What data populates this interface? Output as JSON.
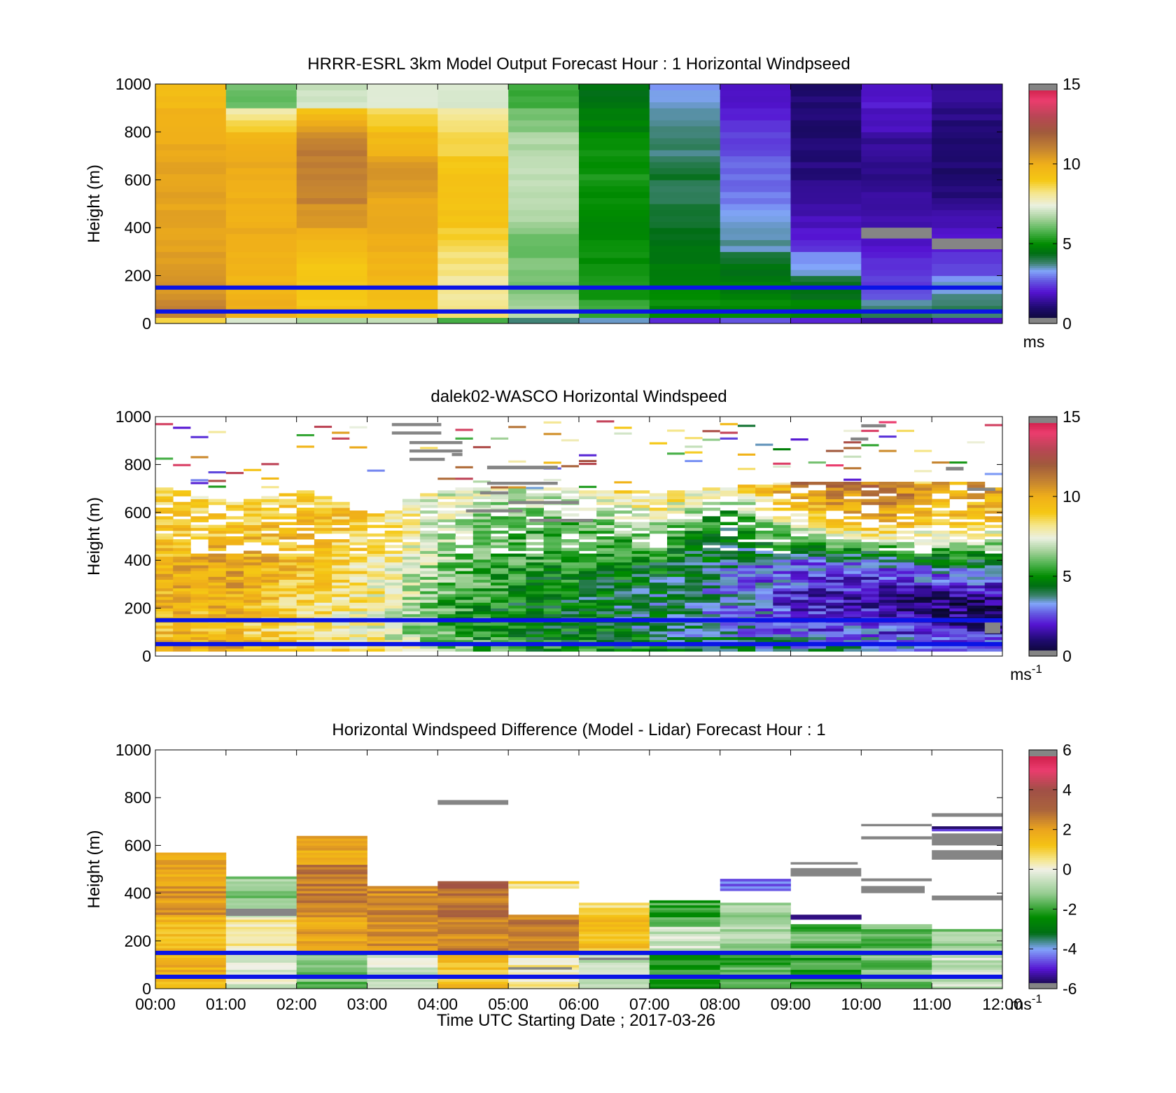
{
  "figure": {
    "x_axis_title": "Time UTC  Starting Date ; 2017-03-26",
    "x_tick_labels": [
      "00:00",
      "01:00",
      "02:00",
      "03:00",
      "04:00",
      "05:00",
      "06:00",
      "07:00",
      "08:00",
      "09:00",
      "10:00",
      "11:00",
      "12:00"
    ],
    "reference_line_color": "#0a14e6",
    "nodata_color": "#858585"
  },
  "chart_data": [
    {
      "type": "heatmap",
      "title": "HRRR-ESRL 3km Model Output   Forecast Hour : 1 Horizontal Windpseed",
      "xlabel": "",
      "ylabel": "Height (m)",
      "ylim": [
        0,
        1000
      ],
      "y_ticks": [
        0,
        200,
        400,
        600,
        800,
        1000
      ],
      "x_range_hours": [
        0,
        12
      ],
      "reference_lines_m": [
        50,
        150
      ],
      "colorbar": {
        "min": 0,
        "max": 15,
        "ticks": [
          0,
          5,
          10,
          15
        ],
        "unit": "ms",
        "unit_exp": ""
      },
      "model_columns": [
        {
          "t0": 0,
          "t1": 1,
          "values": [
            11.0,
            10.6,
            10.4,
            10.3,
            10.2,
            10.3,
            10.2,
            10.1,
            10.0,
            9.5
          ]
        },
        {
          "t0": 1,
          "t1": 2,
          "values": [
            10.0,
            9.8,
            9.8,
            10.0,
            10.0,
            10.0,
            10.1,
            10.0,
            9.0,
            6.0
          ]
        },
        {
          "t0": 2,
          "t1": 3,
          "values": [
            9.2,
            9.0,
            9.0,
            9.6,
            10.4,
            11.0,
            11.0,
            11.2,
            10.4,
            7.0
          ]
        },
        {
          "t0": 3,
          "t1": 4,
          "values": [
            9.2,
            9.4,
            9.8,
            10.0,
            10.2,
            10.2,
            10.6,
            9.8,
            9.2,
            7.4
          ]
        },
        {
          "t0": 4,
          "t1": 5,
          "values": [
            8.4,
            8.0,
            8.2,
            8.6,
            9.2,
            9.2,
            9.2,
            8.8,
            8.4,
            7.2
          ]
        },
        {
          "t0": 5,
          "t1": 6,
          "values": [
            6.7,
            6.3,
            6.2,
            6.0,
            6.6,
            6.8,
            6.9,
            6.8,
            6.4,
            5.5
          ]
        },
        {
          "t0": 6,
          "t1": 7,
          "values": [
            5.6,
            5.2,
            5.1,
            5.0,
            5.0,
            5.1,
            5.2,
            5.1,
            4.8,
            4.5
          ]
        },
        {
          "t0": 7,
          "t1": 8,
          "values": [
            5.0,
            4.9,
            4.6,
            4.4,
            4.2,
            4.0,
            4.2,
            3.8,
            3.6,
            3.3
          ]
        },
        {
          "t0": 8,
          "t1": 9,
          "values": [
            5.0,
            4.8,
            4.5,
            3.6,
            3.3,
            3.0,
            2.8,
            2.6,
            2.3,
            2.0
          ]
        },
        {
          "t0": 9,
          "t1": 10,
          "values": [
            5.0,
            4.5,
            3.6,
            2.2,
            1.8,
            1.5,
            1.2,
            1.0,
            1.0,
            1.0
          ]
        },
        {
          "t0": 10,
          "t1": 11,
          "values": [
            4.2,
            2.6,
            2.2,
            2.0,
            1.6,
            1.4,
            1.2,
            1.3,
            1.8,
            2.0
          ]
        },
        {
          "t0": 11,
          "t1": 12,
          "values": [
            4.0,
            3.6,
            2.6,
            2.0,
            1.6,
            1.2,
            1.0,
            0.9,
            1.1,
            1.5
          ]
        }
      ],
      "nodata_bars": [
        {
          "t0": 10,
          "t1": 11,
          "h0": 355,
          "h1": 400
        },
        {
          "t0": 11,
          "t1": 12,
          "h0": 310,
          "h1": 355
        }
      ]
    },
    {
      "type": "heatmap",
      "title": "dalek02-WASCO  Horizontal Windspeed",
      "xlabel": "",
      "ylabel": "Height (m)",
      "ylim": [
        0,
        1000
      ],
      "y_ticks": [
        0,
        200,
        400,
        600,
        800,
        1000
      ],
      "x_range_hours": [
        0,
        12
      ],
      "reference_lines_m": [
        50,
        150
      ],
      "colorbar": {
        "min": 0,
        "max": 15,
        "ticks": [
          0,
          5,
          10,
          15
        ],
        "unit": "ms",
        "unit_exp": "-1"
      },
      "profile_step_hours": 0.25,
      "mean_profile_knots": [
        [
          0,
          10.0,
          9.5,
          9.6,
          9.8,
          9.0,
          8.5
        ],
        [
          1,
          10.0,
          9.2,
          9.8,
          10.2,
          9.0,
          8.2
        ],
        [
          2,
          9.2,
          8.2,
          8.6,
          9.5,
          9.5,
          8.8
        ],
        [
          3,
          8.2,
          7.6,
          7.8,
          8.2,
          8.8,
          9.0
        ],
        [
          4,
          6.4,
          5.6,
          5.8,
          6.4,
          7.0,
          7.5
        ],
        [
          5,
          5.2,
          4.6,
          4.8,
          5.4,
          5.8,
          7.0
        ],
        [
          6,
          5.0,
          4.6,
          4.4,
          5.0,
          6.0,
          8.5
        ],
        [
          7,
          4.8,
          4.0,
          3.8,
          4.6,
          7.0,
          9.0
        ],
        [
          8,
          4.2,
          3.4,
          3.2,
          3.6,
          4.6,
          8.0
        ],
        [
          9,
          3.6,
          2.6,
          2.0,
          2.8,
          8.0,
          11.0
        ],
        [
          10,
          4.0,
          2.6,
          1.6,
          2.6,
          10.0,
          11.5
        ],
        [
          11,
          3.2,
          1.8,
          0.8,
          4.0,
          9.0,
          10.5
        ],
        [
          12,
          2.8,
          1.6,
          0.9,
          4.0,
          9.0,
          10.0
        ]
      ],
      "profile_knot_heights_m": [
        25,
        100,
        225,
        375,
        550,
        700
      ],
      "data_top_by_hour_m": [
        [
          0,
          700
        ],
        [
          1,
          640
        ],
        [
          2,
          690
        ],
        [
          3,
          590
        ],
        [
          4,
          700
        ],
        [
          5,
          700
        ],
        [
          6,
          690
        ],
        [
          7,
          680
        ],
        [
          8,
          700
        ],
        [
          9,
          720
        ],
        [
          10,
          720
        ],
        [
          11,
          720
        ],
        [
          12,
          720
        ]
      ],
      "nodata_bars": [
        {
          "t0": 3.35,
          "t1": 4.05,
          "h0": 960,
          "h1": 973
        },
        {
          "t0": 3.35,
          "t1": 4.05,
          "h0": 925,
          "h1": 938
        },
        {
          "t0": 3.6,
          "t1": 4.35,
          "h0": 885,
          "h1": 898
        },
        {
          "t0": 3.6,
          "t1": 4.35,
          "h0": 850,
          "h1": 863
        },
        {
          "t0": 3.6,
          "t1": 4.1,
          "h0": 815,
          "h1": 828
        },
        {
          "t0": 4.2,
          "t1": 4.35,
          "h0": 835,
          "h1": 848
        },
        {
          "t0": 4.7,
          "t1": 5.7,
          "h0": 780,
          "h1": 795
        },
        {
          "t0": 4.7,
          "t1": 5.7,
          "h0": 715,
          "h1": 728
        },
        {
          "t0": 4.6,
          "t1": 5.0,
          "h0": 675,
          "h1": 688
        },
        {
          "t0": 5.0,
          "t1": 6.0,
          "h0": 635,
          "h1": 648
        },
        {
          "t0": 4.4,
          "t1": 5.2,
          "h0": 600,
          "h1": 613
        },
        {
          "t0": 5.3,
          "t1": 6.2,
          "h0": 560,
          "h1": 573
        },
        {
          "t0": 10.0,
          "t1": 10.35,
          "h0": 955,
          "h1": 968
        },
        {
          "t0": 9.85,
          "t1": 10.1,
          "h0": 900,
          "h1": 913
        },
        {
          "t0": 11.2,
          "t1": 11.45,
          "h0": 775,
          "h1": 790
        },
        {
          "t0": 11.5,
          "t1": 11.9,
          "h0": 690,
          "h1": 703
        },
        {
          "t0": 11.75,
          "t1": 11.97,
          "h0": 95,
          "h1": 140
        }
      ]
    },
    {
      "type": "heatmap",
      "title": "Horizontal Windspeed Difference (Model - Lidar) Forecast Hour : 1",
      "xlabel": "Time UTC  Starting Date ; 2017-03-26",
      "ylabel": "Height (m)",
      "ylim": [
        0,
        1000
      ],
      "y_ticks": [
        0,
        200,
        400,
        600,
        800,
        1000
      ],
      "x_range_hours": [
        0,
        12
      ],
      "reference_lines_m": [
        50,
        150
      ],
      "colorbar": {
        "min": -6,
        "max": 6,
        "ticks": [
          -6,
          -4,
          -2,
          0,
          2,
          4,
          6
        ],
        "unit": "ms",
        "unit_exp": "-1"
      },
      "difference_columns": [
        {
          "t0": 0,
          "t1": 1,
          "top": 570,
          "segments": [
            [
              0,
              150,
              1.6
            ],
            [
              150,
              300,
              1.5
            ],
            [
              300,
              430,
              2.2
            ],
            [
              430,
              570,
              1.8
            ]
          ]
        },
        {
          "t0": 1,
          "t1": 2,
          "top": 465,
          "segments": [
            [
              0,
              150,
              -0.3
            ],
            [
              150,
              300,
              0.3
            ],
            [
              300,
              465,
              -1.2
            ]
          ]
        },
        {
          "t0": 2,
          "t1": 3,
          "top": 640,
          "segments": [
            [
              0,
              150,
              -1.5
            ],
            [
              150,
              300,
              2.0
            ],
            [
              300,
              520,
              2.7
            ],
            [
              520,
              640,
              1.8
            ]
          ]
        },
        {
          "t0": 3,
          "t1": 4,
          "top": 425,
          "segments": [
            [
              0,
              150,
              -0.4
            ],
            [
              150,
              300,
              2.2
            ],
            [
              300,
              425,
              2.4
            ]
          ]
        },
        {
          "t0": 4,
          "t1": 5,
          "top": 445,
          "segments": [
            [
              0,
              150,
              1.2
            ],
            [
              150,
              300,
              2.5
            ],
            [
              300,
              420,
              2.8
            ],
            [
              420,
              445,
              3.5
            ]
          ]
        },
        {
          "t0": 5,
          "t1": 6,
          "top": 450,
          "segments": [
            [
              0,
              150,
              0.3
            ],
            [
              150,
              310,
              2.5
            ],
            [
              420,
              450,
              0.8
            ]
          ]
        },
        {
          "t0": 6,
          "t1": 7,
          "top": 360,
          "segments": [
            [
              0,
              150,
              -0.8
            ],
            [
              150,
              340,
              1.3
            ],
            [
              340,
              360,
              0.5
            ]
          ]
        },
        {
          "t0": 7,
          "t1": 8,
          "top": 365,
          "segments": [
            [
              0,
              150,
              -2.2
            ],
            [
              150,
              260,
              -0.5
            ],
            [
              260,
              365,
              -2.0
            ]
          ]
        },
        {
          "t0": 8,
          "t1": 9,
          "top": 455,
          "segments": [
            [
              0,
              150,
              -1.8
            ],
            [
              150,
              360,
              -0.9
            ],
            [
              410,
              455,
              -4.5
            ]
          ]
        },
        {
          "t0": 9,
          "t1": 10,
          "top": 310,
          "segments": [
            [
              0,
              150,
              -2.0
            ],
            [
              150,
              270,
              -1.7
            ],
            [
              290,
              310,
              -5.0
            ]
          ]
        },
        {
          "t0": 10,
          "t1": 11,
          "top": 270,
          "segments": [
            [
              0,
              150,
              -1.5
            ],
            [
              150,
              270,
              -1.6
            ]
          ]
        },
        {
          "t0": 11,
          "t1": 12,
          "top": 255,
          "segments": [
            [
              0,
              150,
              -0.5
            ],
            [
              150,
              250,
              -1.2
            ],
            [
              660,
              680,
              -5.2
            ]
          ]
        }
      ],
      "nodata_bars": [
        {
          "t0": 4.0,
          "t1": 5.0,
          "h0": 770,
          "h1": 790
        },
        {
          "t0": 9.0,
          "t1": 10.0,
          "h0": 470,
          "h1": 505
        },
        {
          "t0": 9.0,
          "t1": 9.95,
          "h0": 520,
          "h1": 530
        },
        {
          "t0": 10.0,
          "t1": 10.9,
          "h0": 400,
          "h1": 430
        },
        {
          "t0": 10.0,
          "t1": 11.0,
          "h0": 450,
          "h1": 462
        },
        {
          "t0": 10.0,
          "t1": 11.0,
          "h0": 625,
          "h1": 638
        },
        {
          "t0": 10.0,
          "t1": 11.0,
          "h0": 680,
          "h1": 690
        },
        {
          "t0": 11.0,
          "t1": 12.0,
          "h0": 370,
          "h1": 390
        },
        {
          "t0": 11.0,
          "t1": 12.0,
          "h0": 540,
          "h1": 580
        },
        {
          "t0": 11.0,
          "t1": 12.0,
          "h0": 600,
          "h1": 650
        },
        {
          "t0": 11.0,
          "t1": 12.0,
          "h0": 720,
          "h1": 735
        },
        {
          "t0": 1.0,
          "t1": 2.0,
          "h0": 305,
          "h1": 335
        },
        {
          "t0": 6.0,
          "t1": 7.0,
          "h0": 120,
          "h1": 130
        },
        {
          "t0": 5.0,
          "t1": 5.9,
          "h0": 80,
          "h1": 90
        }
      ]
    }
  ]
}
